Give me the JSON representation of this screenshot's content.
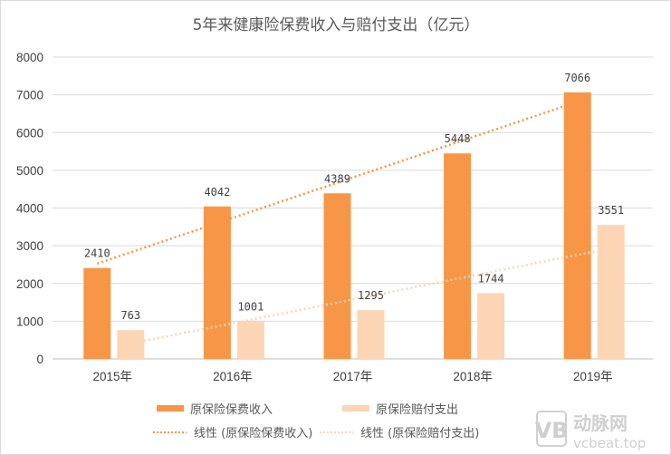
{
  "chart_data": {
    "type": "bar",
    "title": "5年来健康险保费收入与赔付支出（亿元）",
    "categories": [
      "2015年",
      "2016年",
      "2017年",
      "2018年",
      "2019年"
    ],
    "series": [
      {
        "name": "原保险保费收入",
        "values": [
          2410,
          4042,
          4389,
          5448,
          7066
        ],
        "color": "#f79646"
      },
      {
        "name": "原保险赔付支出",
        "values": [
          763,
          1001,
          1295,
          1744,
          3551
        ],
        "color": "#fcd5b5"
      }
    ],
    "trendlines": [
      {
        "name": "线性 (原保险保费收入)",
        "type": "linear",
        "series": 0,
        "color": "#f79646"
      },
      {
        "name": "线性 (原保险赔付支出)",
        "type": "linear",
        "series": 1,
        "color": "#fcd5b5"
      }
    ],
    "ylim": [
      0,
      8000
    ],
    "yticks": [
      "0",
      "1000",
      "2000",
      "3000",
      "4000",
      "5000",
      "6000",
      "7000",
      "8000"
    ],
    "grid": true,
    "legend_position": "bottom"
  },
  "watermark": {
    "brand": "动脉网",
    "site": "vcbeat.top"
  }
}
